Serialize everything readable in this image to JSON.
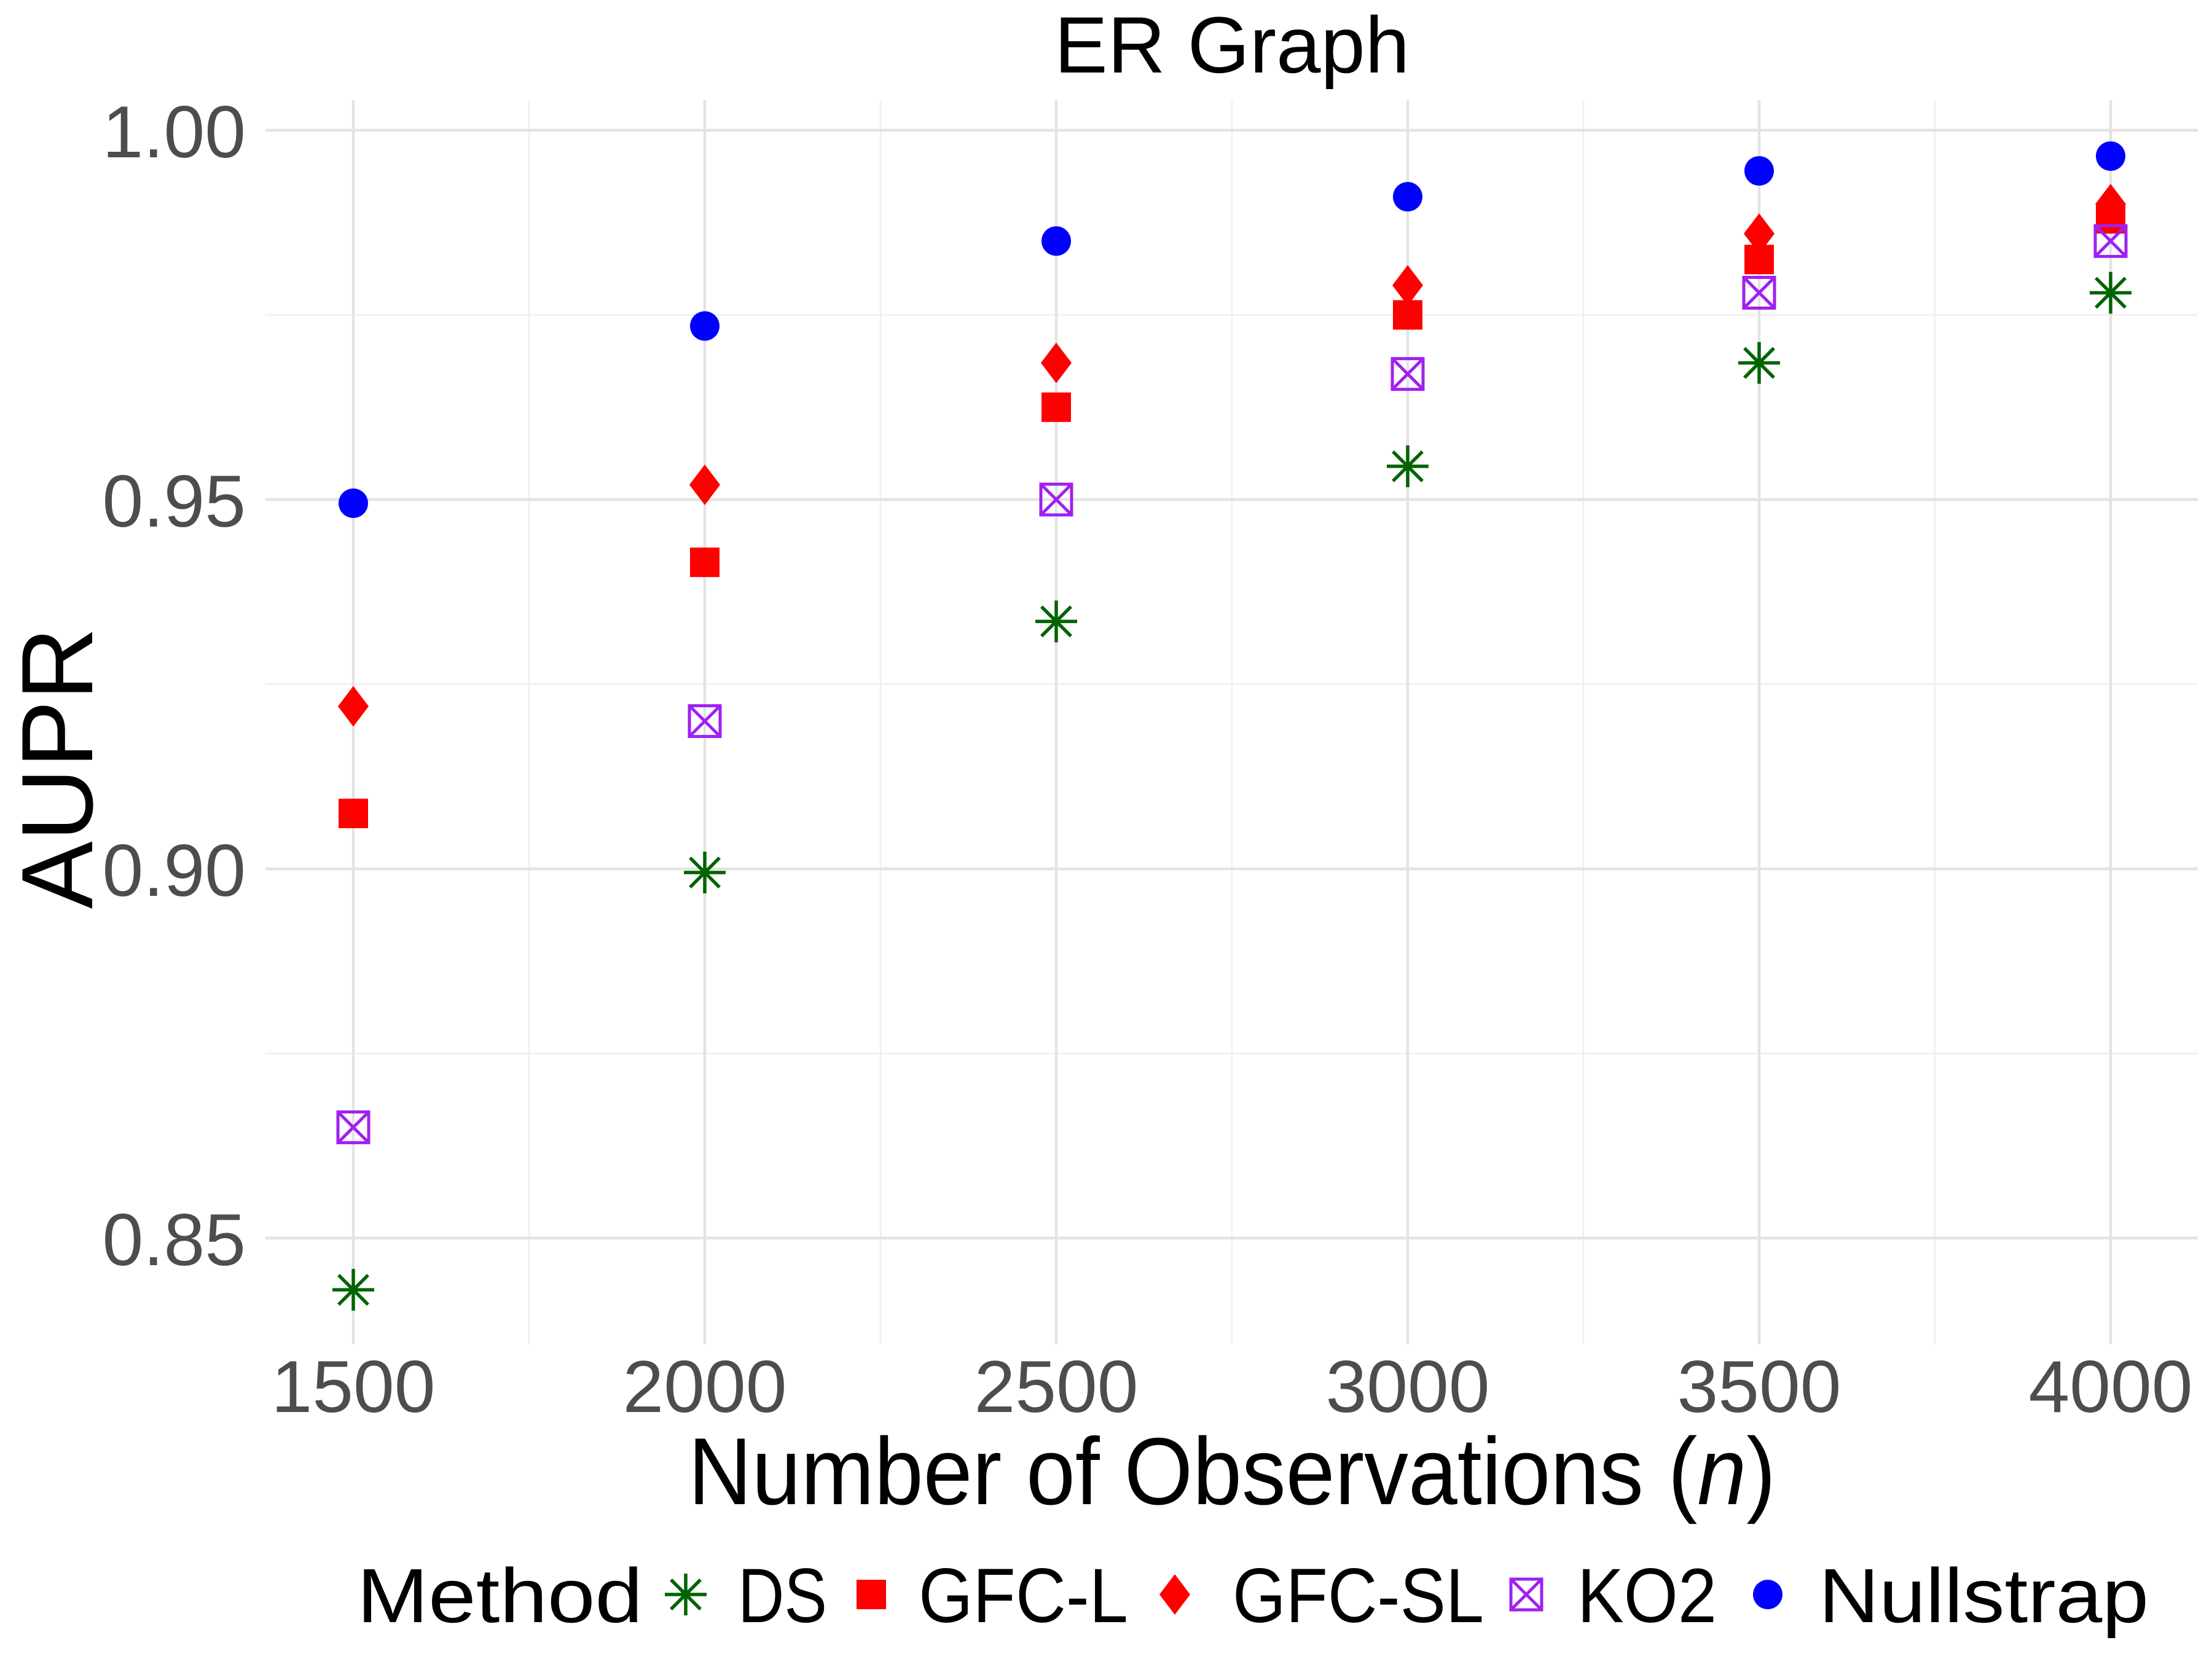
{
  "title": "ER Graph",
  "y_axis": {
    "label": "AUPR",
    "ticks": [
      "1.00",
      "0.95",
      "0.90",
      "0.85"
    ]
  },
  "x_axis": {
    "label_prefix": "Number of Observations (",
    "label_var": "n",
    "label_suffix": ")",
    "ticks": [
      "1500",
      "2000",
      "2500",
      "3000",
      "3500",
      "4000"
    ]
  },
  "legend": {
    "title": "Method"
  },
  "colors": {
    "ds_green": "#006400",
    "gfc_red": "#ff0000",
    "ko2_purple": "#a020f0",
    "nullstrap_blue": "#0000ff",
    "grid_major": "#e3e3e3",
    "grid_minor": "#efefef",
    "tick_text": "#4d4d4d"
  },
  "chart_data": {
    "type": "scatter",
    "title": "ER Graph",
    "xlabel": "Number of Observations (n)",
    "ylabel": "AUPR",
    "x": [
      1500,
      2000,
      2500,
      3000,
      3500,
      4000
    ],
    "x_ticks": [
      1500,
      2000,
      2500,
      3000,
      3500,
      4000
    ],
    "y_ticks": [
      1.0,
      0.95,
      0.9,
      0.85
    ],
    "xlim": [
      1375,
      4125
    ],
    "ylim": [
      0.8355,
      1.0041
    ],
    "grid": "major+minor",
    "legend_position": "bottom",
    "series": [
      {
        "name": "DS",
        "marker": "asterisk",
        "color": "#006400",
        "values": [
          0.843,
          0.8995,
          0.9335,
          0.9545,
          0.9685,
          0.978
        ]
      },
      {
        "name": "GFC-L",
        "marker": "square",
        "color": "#ff0000",
        "values": [
          0.9075,
          0.9415,
          0.9625,
          0.975,
          0.9825,
          0.988
        ]
      },
      {
        "name": "GFC-SL",
        "marker": "diamond",
        "color": "#ff0000",
        "values": [
          0.922,
          0.952,
          0.9685,
          0.979,
          0.986,
          0.99
        ]
      },
      {
        "name": "KO2",
        "marker": "square-cross",
        "color": "#a020f0",
        "values": [
          0.865,
          0.92,
          0.95,
          0.967,
          0.978,
          0.985
        ]
      },
      {
        "name": "Nullstrap",
        "marker": "circle",
        "color": "#0000ff",
        "values": [
          0.9495,
          0.9735,
          0.985,
          0.991,
          0.9945,
          0.9965
        ]
      }
    ]
  }
}
